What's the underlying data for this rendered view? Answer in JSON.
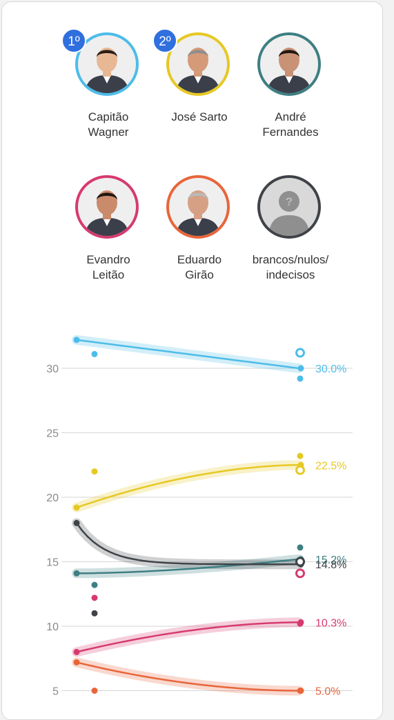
{
  "candidates": [
    {
      "name_line1": "Capitão",
      "name_line2": "Wagner",
      "name_line3": "",
      "rank": "1º",
      "color": "#4dbce9",
      "skin": "#e8b895",
      "hair": "#2a1d16"
    },
    {
      "name_line1": "José Sarto",
      "name_line2": "",
      "name_line3": "",
      "rank": "2º",
      "color": "#e6c823",
      "skin": "#d59a78",
      "hair": "#8d8d8d"
    },
    {
      "name_line1": "André",
      "name_line2": "Fernandes",
      "name_line3": "",
      "rank": "",
      "color": "#3e7f82",
      "skin": "#c99176",
      "hair": "#1e1712"
    },
    {
      "name_line1": "Evandro",
      "name_line2": "Leitão",
      "name_line3": "",
      "rank": "",
      "color": "#d63b6e",
      "skin": "#c98b6b",
      "hair": "#1f1712"
    },
    {
      "name_line1": "Eduardo",
      "name_line2": "Girão",
      "name_line3": "",
      "rank": "",
      "color": "#e8653a",
      "skin": "#d6a084",
      "hair": "#b9b9b9"
    },
    {
      "name_line1": "brancos/nulos/",
      "name_line2": "indecisos",
      "name_line3": "",
      "rank": "",
      "color": "#3f4348",
      "skin": "#9a9a9a",
      "hair": "#9a9a9a"
    }
  ],
  "chart_data": {
    "type": "line",
    "xlabel": "",
    "ylabel": "",
    "ylim": [
      4.5,
      33
    ],
    "yticks": [
      5,
      10,
      15,
      20,
      25,
      30
    ],
    "grid": true,
    "series": [
      {
        "name": "Capitão Wagner",
        "color": "#4dbce9",
        "start": 32.2,
        "end": 30.0,
        "label": "30.0%",
        "poll_start": 31.1,
        "poll_end": 29.2,
        "ring": 31.2,
        "curve": "linear"
      },
      {
        "name": "José Sarto",
        "color": "#e6c823",
        "start": 19.2,
        "end": 22.5,
        "label": "22.5%",
        "poll_start": 22.0,
        "poll_end": 23.2,
        "ring": 22.1,
        "curve": "concave"
      },
      {
        "name": "André Fernandes",
        "color": "#3e7f82",
        "start": 14.1,
        "end": 15.2,
        "label": "15.2%",
        "poll_start": 13.2,
        "poll_end": 16.1,
        "ring": 15.0,
        "curve": "convex"
      },
      {
        "name": "brancos/nulos/indecisos",
        "color": "#3f4348",
        "start": 18.0,
        "end": 14.8,
        "label": "14.8%",
        "poll_start": 11.0,
        "poll_end": 15.1,
        "ring": 15.0,
        "curve": "decay"
      },
      {
        "name": "Evandro Leitão",
        "color": "#d63b6e",
        "start": 8.0,
        "end": 10.3,
        "label": "10.3%",
        "poll_start": 12.2,
        "poll_end": 10.2,
        "ring": 14.1,
        "curve": "concave"
      },
      {
        "name": "Eduardo Girão",
        "color": "#e8653a",
        "start": 7.2,
        "end": 5.0,
        "label": "5.0%",
        "poll_start": 5.0,
        "poll_end": 5.0,
        "ring": null,
        "curve": "decay2"
      }
    ]
  }
}
